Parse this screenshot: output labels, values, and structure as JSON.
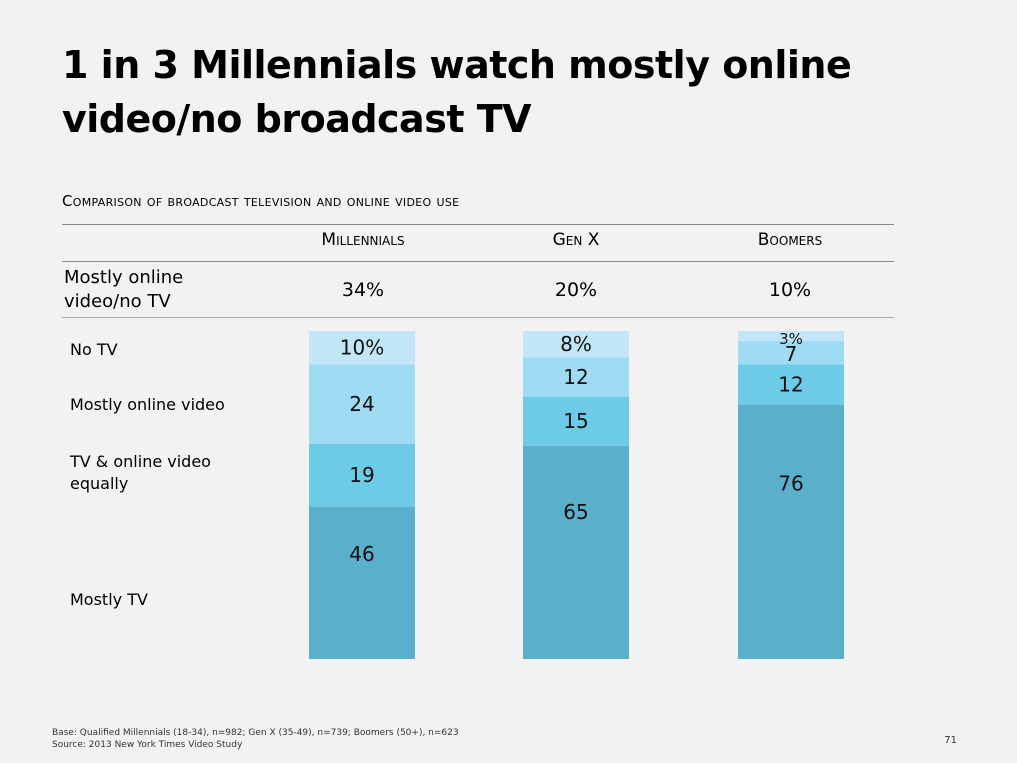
{
  "title": "1 in 3 Millennials watch mostly online video/no broadcast TV",
  "subtitle": "Comparison of broadcast television and online video use",
  "summary_row_label": "Mostly online video/no TV",
  "groups": [
    {
      "name": "Millennials",
      "summary": "34%"
    },
    {
      "name": "Gen X",
      "summary": "20%"
    },
    {
      "name": "Boomers",
      "summary": "10%"
    }
  ],
  "legend": [
    "No TV",
    "Mostly online video",
    "TV & online video equally",
    "Mostly TV"
  ],
  "colors": {
    "no_tv": "#c2e6f7",
    "mostly_online": "#9fdcf3",
    "equally": "#6dcbe7",
    "mostly_tv": "#5aafca"
  },
  "chart_data": {
    "type": "bar",
    "stacked": true,
    "categories": [
      "Millennials",
      "Gen X",
      "Boomers"
    ],
    "series": [
      {
        "name": "Mostly TV",
        "values": [
          46,
          65,
          76
        ],
        "labels": [
          "46",
          "65",
          "76"
        ]
      },
      {
        "name": "TV & online video equally",
        "values": [
          19,
          15,
          12
        ],
        "labels": [
          "19",
          "15",
          "12"
        ]
      },
      {
        "name": "Mostly online video",
        "values": [
          24,
          12,
          7
        ],
        "labels": [
          "24",
          "12",
          "7"
        ]
      },
      {
        "name": "No TV",
        "values": [
          10,
          8,
          3
        ],
        "labels": [
          "10%",
          "8%",
          "3%"
        ]
      }
    ],
    "ylim": [
      0,
      100
    ]
  },
  "footnote": {
    "base": "Base: Qualified Millennials (18-34), n=982; Gen X (35-49), n=739; Boomers (50+), n=623",
    "source": "Source: 2013 New York Times Video Study"
  },
  "page_number": "71"
}
